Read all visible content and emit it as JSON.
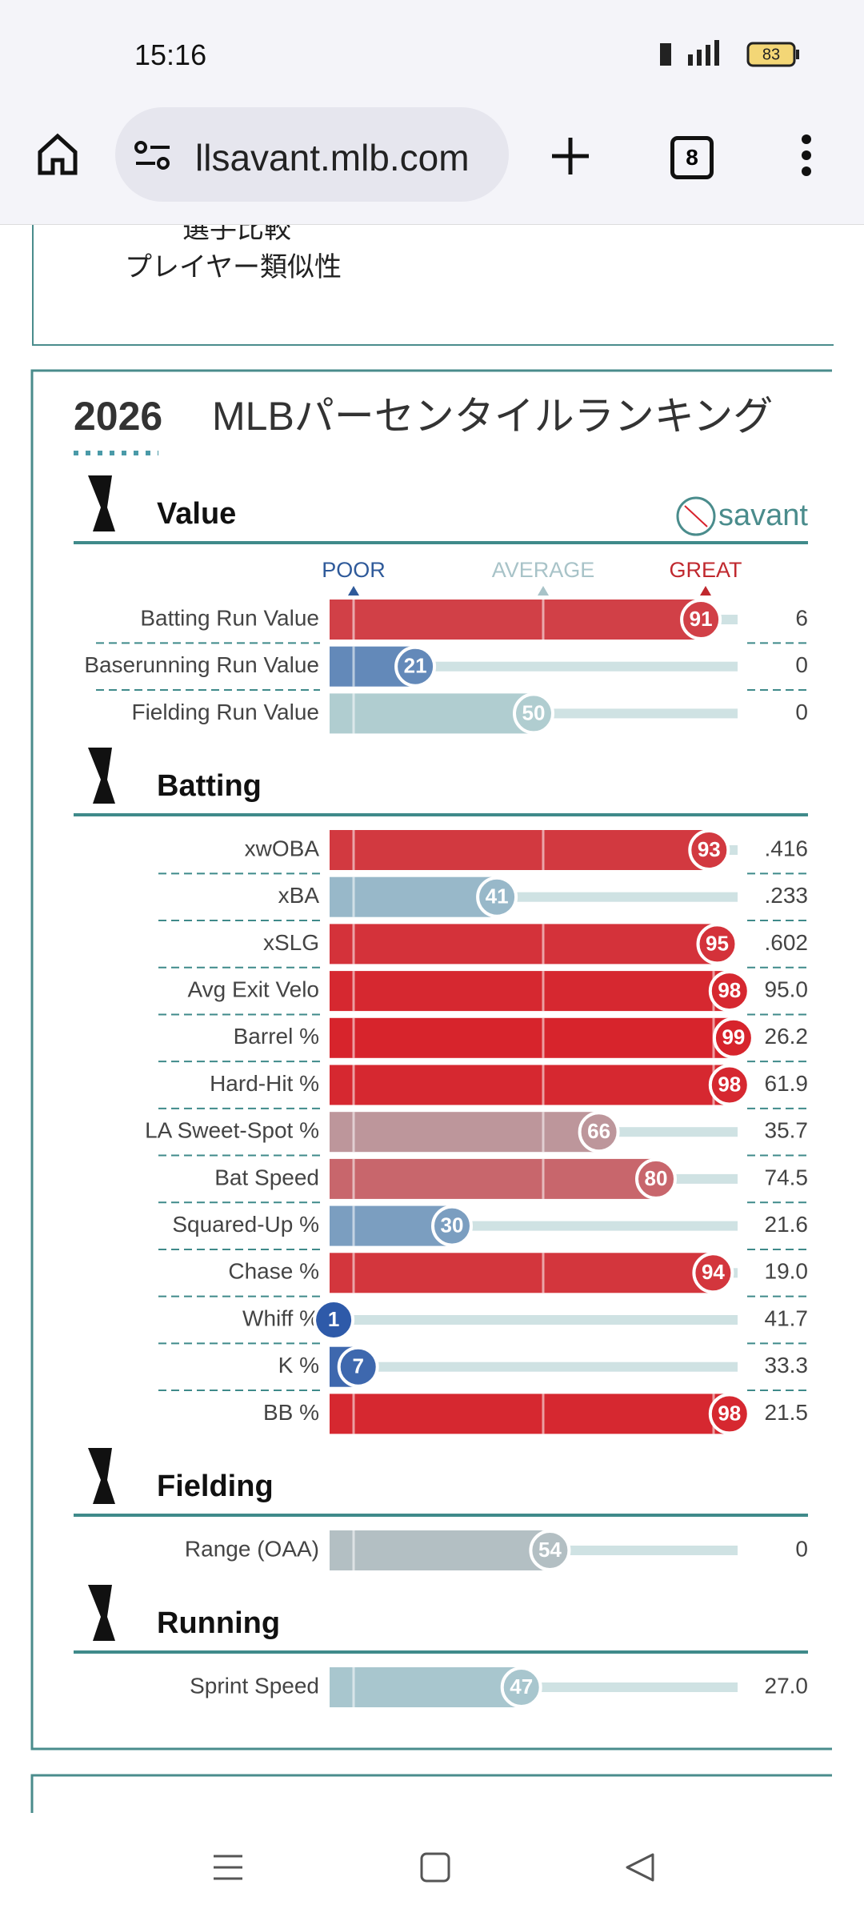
{
  "status": {
    "time": "15:16",
    "battery": "83"
  },
  "browser": {
    "url": "llsavant.mlb.com",
    "tabs": "8"
  },
  "prev_card": {
    "lines": [
      "選手比較",
      "プレイヤー類似性"
    ]
  },
  "card": {
    "year": "2026",
    "title": "MLBパーセンタイルランキング",
    "logo": "savant",
    "scale": [
      "POOR",
      "AVERAGE",
      "GREAT"
    ],
    "sections": [
      {
        "title": "Value",
        "rows": [
          {
            "label": "Batting Run Value",
            "percentile": 91,
            "value": "6"
          },
          {
            "label": "Baserunning Run Value",
            "percentile": 21,
            "value": "0"
          },
          {
            "label": "Fielding Run Value",
            "percentile": 50,
            "value": "0"
          }
        ]
      },
      {
        "title": "Batting",
        "rows": [
          {
            "label": "xwOBA",
            "percentile": 93,
            "value": ".416"
          },
          {
            "label": "xBA",
            "percentile": 41,
            "value": ".233"
          },
          {
            "label": "xSLG",
            "percentile": 95,
            "value": ".602"
          },
          {
            "label": "Avg Exit Velo",
            "percentile": 98,
            "value": "95.0"
          },
          {
            "label": "Barrel %",
            "percentile": 99,
            "value": "26.2"
          },
          {
            "label": "Hard-Hit %",
            "percentile": 98,
            "value": "61.9"
          },
          {
            "label": "LA Sweet-Spot %",
            "percentile": 66,
            "value": "35.7"
          },
          {
            "label": "Bat Speed",
            "percentile": 80,
            "value": "74.5"
          },
          {
            "label": "Squared-Up %",
            "percentile": 30,
            "value": "21.6"
          },
          {
            "label": "Chase %",
            "percentile": 94,
            "value": "19.0"
          },
          {
            "label": "Whiff %",
            "percentile": 1,
            "value": "41.7"
          },
          {
            "label": "K %",
            "percentile": 7,
            "value": "33.3"
          },
          {
            "label": "BB %",
            "percentile": 98,
            "value": "21.5"
          }
        ]
      },
      {
        "title": "Fielding",
        "rows": [
          {
            "label": "Range (OAA)",
            "percentile": 54,
            "value": "0"
          }
        ]
      },
      {
        "title": "Running",
        "rows": [
          {
            "label": "Sprint Speed",
            "percentile": 47,
            "value": "27.0"
          }
        ]
      }
    ]
  }
}
